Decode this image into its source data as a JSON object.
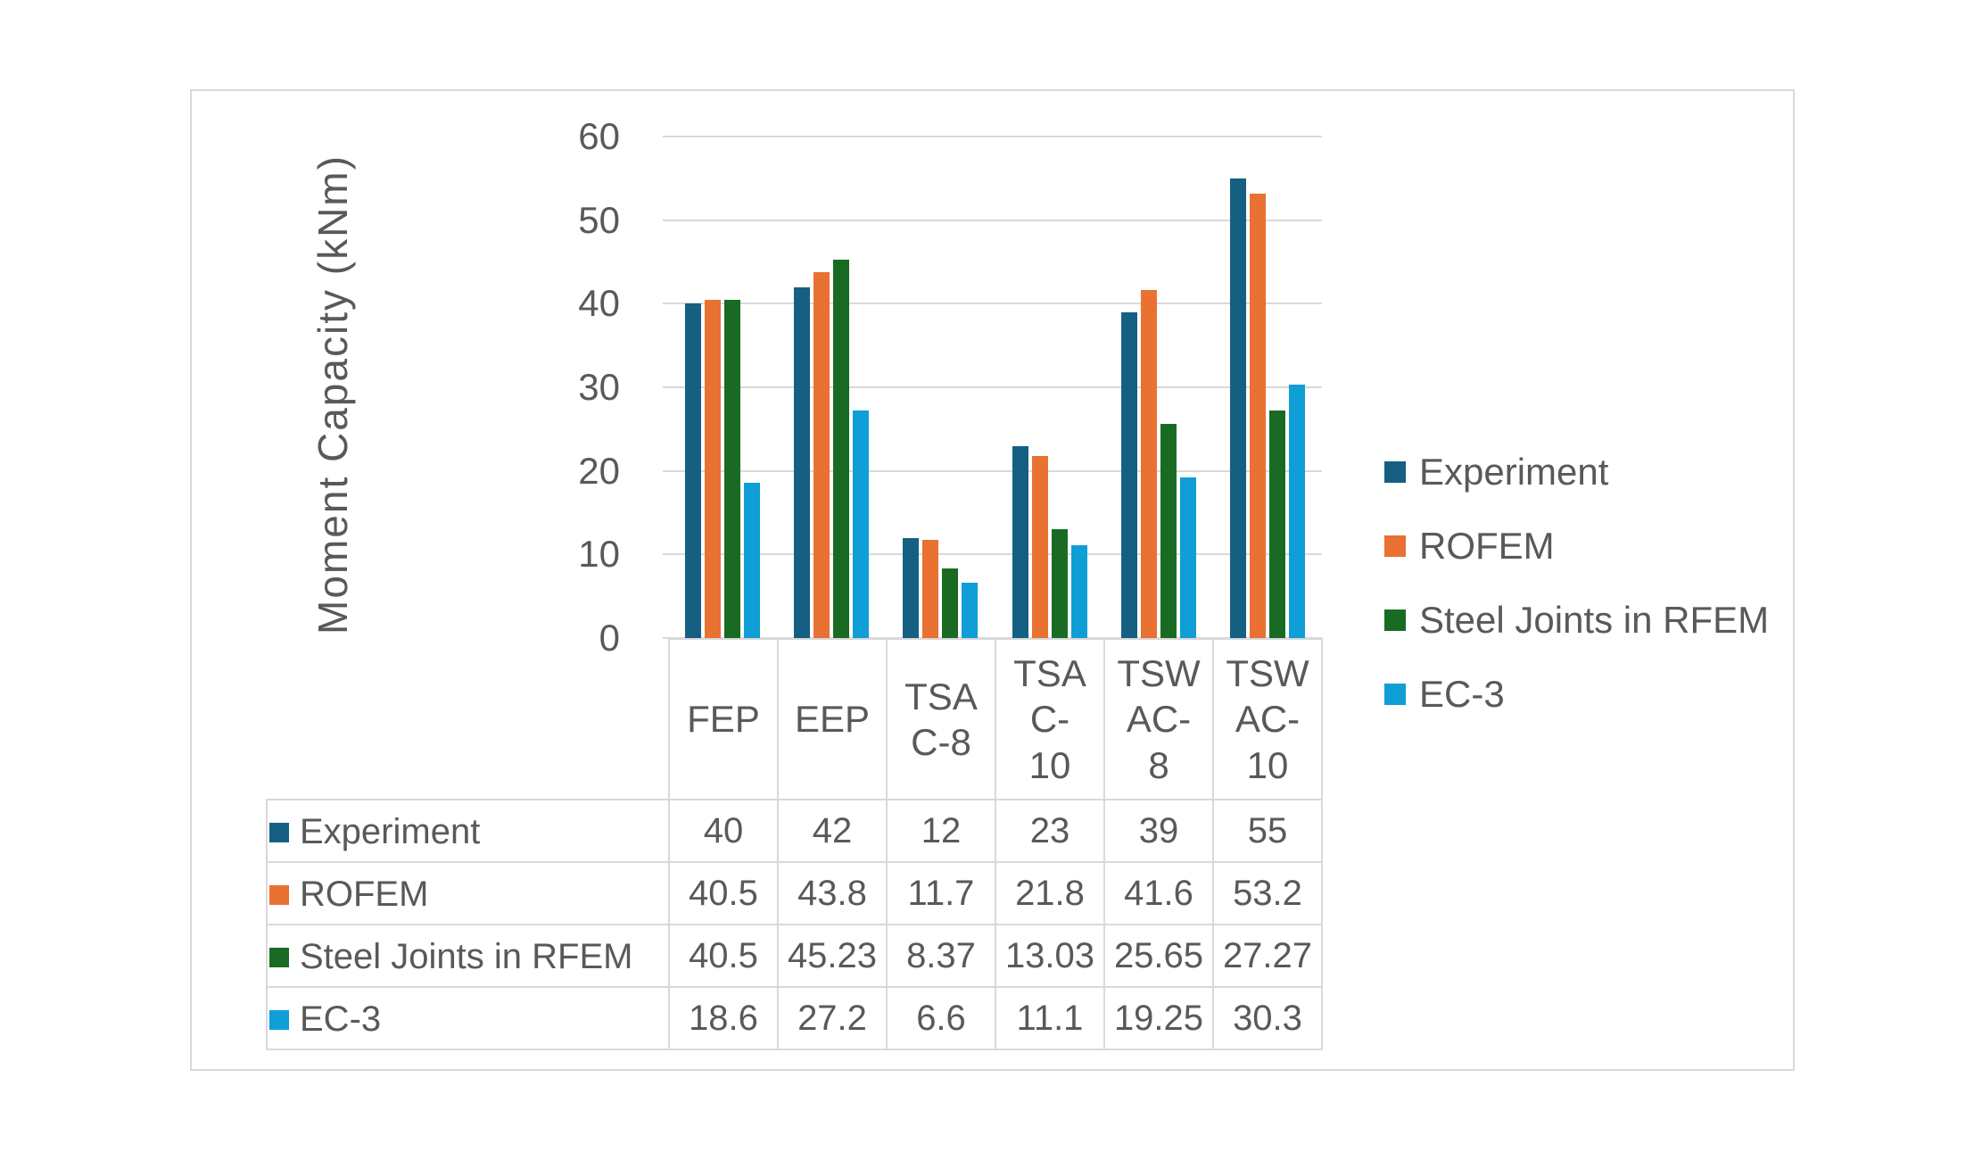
{
  "chart_data": {
    "type": "bar",
    "title": "",
    "ylabel": "Moment Capacity (kNm)",
    "xlabel": "",
    "ylim": [
      0,
      60
    ],
    "yticks": [
      0,
      10,
      20,
      30,
      40,
      50,
      60
    ],
    "grid": "horizontal-major",
    "gridline_color": "#d9d9d9",
    "text_color": "#595959",
    "frame_border_color": "#d9d9d9",
    "legend_position": "right",
    "has_data_table": true,
    "categories": [
      "FEP",
      "EEP",
      "TSA C-8",
      "TSA C-10",
      "TSW AC-8",
      "TSW AC-10"
    ],
    "categories_display": [
      "FEP",
      "EEP",
      "TSA\nC-8",
      "TSA\nC-\n10",
      "TSW\nAC-\n8",
      "TSW\nAC-\n10"
    ],
    "series": [
      {
        "name": "Experiment",
        "color": "#156082",
        "values": [
          40,
          42,
          12,
          23,
          39,
          55
        ]
      },
      {
        "name": "ROFEM",
        "color": "#e97132",
        "values": [
          40.5,
          43.8,
          11.7,
          21.8,
          41.6,
          53.2
        ]
      },
      {
        "name": "Steel Joints in RFEM",
        "color": "#196b24",
        "values": [
          40.5,
          45.23,
          8.37,
          13.03,
          25.65,
          27.27
        ]
      },
      {
        "name": "EC-3",
        "color": "#0f9ed5",
        "values": [
          18.6,
          27.2,
          6.6,
          11.1,
          19.25,
          30.3
        ]
      }
    ]
  }
}
